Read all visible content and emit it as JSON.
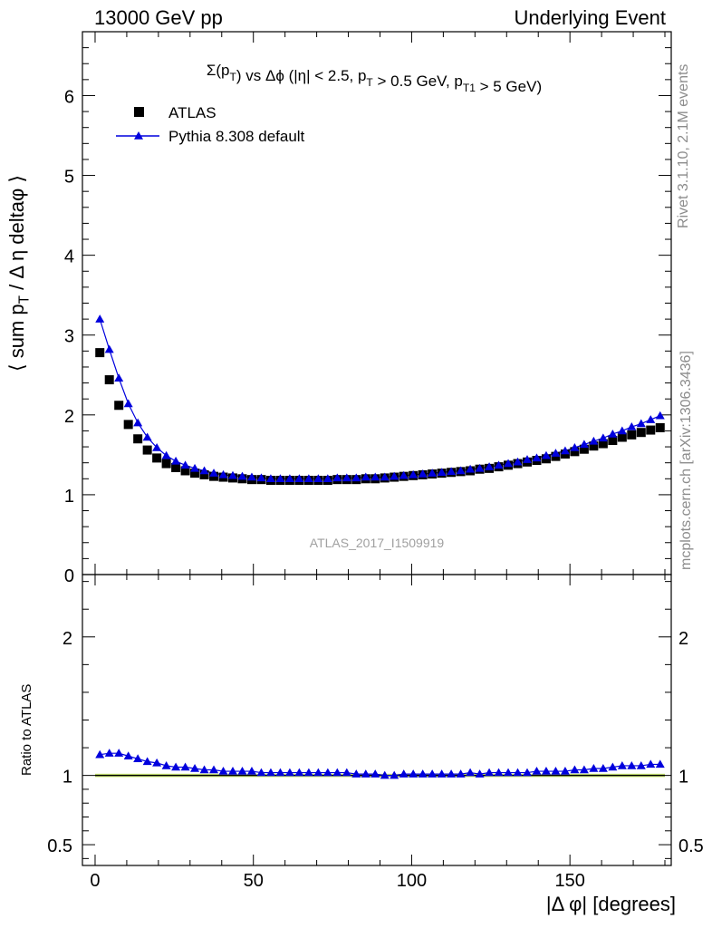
{
  "header": {
    "left": "13000 GeV pp",
    "right": "Underlying Event"
  },
  "side": {
    "rivet": "Rivet 3.1.10,  2.1M events",
    "mcplots": "mcplots.cern.ch [arXiv:1306.3436]"
  },
  "labels": {
    "y_main": "⟨ sum p_T / Δ η deltaφ ⟩",
    "y_ratio": "Ratio to ATLAS",
    "x": "|Δ φ| [degrees]",
    "analysis": "ATLAS_2017_I1509919"
  },
  "title": {
    "main": "Σ(p_T) vs Δϕ (|η| < 2.5, p_T > 0.5 GeV, p_T1 > 5 GeV)"
  },
  "legend": {
    "entries": [
      {
        "label": "ATLAS",
        "marker": "square",
        "color": "#000000"
      },
      {
        "label": "Pythia 8.308 default",
        "marker": "triangle",
        "color": "#0000dd"
      }
    ]
  },
  "colors": {
    "data": "#000000",
    "mc": "#0000dd",
    "band": "#ccee66",
    "reference_line": "#000000"
  },
  "chart_data": [
    {
      "type": "scatter",
      "name": "main",
      "xlim": [
        -4,
        182
      ],
      "ylim": [
        0,
        6.8
      ],
      "x_ticks": [
        0,
        50,
        100,
        150
      ],
      "y_ticks": [
        0,
        1,
        2,
        3,
        4,
        5,
        6
      ],
      "y_tick_labels": [
        "0",
        "1",
        "2",
        "3",
        "4",
        "5",
        "6"
      ],
      "x": [
        1.5,
        4.5,
        7.5,
        10.5,
        13.5,
        16.5,
        19.5,
        22.5,
        25.5,
        28.5,
        31.5,
        34.5,
        37.5,
        40.5,
        43.5,
        46.5,
        49.5,
        52.5,
        55.5,
        58.5,
        61.5,
        64.5,
        67.5,
        70.5,
        73.5,
        76.5,
        79.5,
        82.5,
        85.5,
        88.5,
        91.5,
        94.5,
        97.5,
        100.5,
        103.5,
        106.5,
        109.5,
        112.5,
        115.5,
        118.5,
        121.5,
        124.5,
        127.5,
        130.5,
        133.5,
        136.5,
        139.5,
        142.5,
        145.5,
        148.5,
        151.5,
        154.5,
        157.5,
        160.5,
        163.5,
        166.5,
        169.5,
        172.5,
        175.5,
        178.5
      ],
      "series": [
        {
          "name": "ATLAS",
          "marker": "square",
          "values": [
            2.78,
            2.44,
            2.12,
            1.88,
            1.7,
            1.56,
            1.46,
            1.39,
            1.34,
            1.3,
            1.27,
            1.25,
            1.23,
            1.22,
            1.21,
            1.2,
            1.19,
            1.19,
            1.18,
            1.18,
            1.18,
            1.18,
            1.18,
            1.18,
            1.18,
            1.19,
            1.19,
            1.19,
            1.2,
            1.2,
            1.21,
            1.22,
            1.23,
            1.24,
            1.25,
            1.26,
            1.27,
            1.28,
            1.29,
            1.3,
            1.32,
            1.33,
            1.35,
            1.37,
            1.39,
            1.41,
            1.43,
            1.45,
            1.48,
            1.51,
            1.54,
            1.57,
            1.61,
            1.64,
            1.68,
            1.72,
            1.75,
            1.78,
            1.81,
            1.84
          ]
        },
        {
          "name": "Pythia 8.308 default",
          "marker": "triangle",
          "values": [
            3.2,
            2.82,
            2.46,
            2.14,
            1.9,
            1.72,
            1.59,
            1.49,
            1.42,
            1.37,
            1.33,
            1.3,
            1.27,
            1.25,
            1.24,
            1.23,
            1.22,
            1.21,
            1.2,
            1.2,
            1.2,
            1.2,
            1.2,
            1.2,
            1.2,
            1.21,
            1.21,
            1.21,
            1.22,
            1.22,
            1.22,
            1.23,
            1.24,
            1.25,
            1.26,
            1.27,
            1.28,
            1.29,
            1.3,
            1.32,
            1.33,
            1.35,
            1.37,
            1.39,
            1.41,
            1.44,
            1.46,
            1.49,
            1.52,
            1.55,
            1.59,
            1.63,
            1.67,
            1.71,
            1.76,
            1.8,
            1.85,
            1.89,
            1.94,
            1.99
          ]
        }
      ]
    },
    {
      "type": "scatter",
      "name": "ratio",
      "ylabel": "Ratio to ATLAS",
      "xlabel": "|Δ φ| [degrees]",
      "xlim": [
        -4,
        182
      ],
      "ylim": [
        0.35,
        2.45
      ],
      "x_ticks": [
        0,
        50,
        100,
        150
      ],
      "x_tick_labels": [
        "0",
        "50",
        "100",
        "150"
      ],
      "y_ticks": [
        0.5,
        1,
        2
      ],
      "y_tick_labels": [
        "0.5",
        "1",
        "2"
      ],
      "series": [
        {
          "name": "Pythia 8.308 default",
          "values": [
            1.15,
            1.16,
            1.16,
            1.14,
            1.12,
            1.1,
            1.09,
            1.07,
            1.06,
            1.06,
            1.05,
            1.04,
            1.04,
            1.03,
            1.03,
            1.03,
            1.03,
            1.02,
            1.02,
            1.02,
            1.02,
            1.02,
            1.02,
            1.02,
            1.02,
            1.02,
            1.02,
            1.01,
            1.01,
            1.01,
            1.0,
            1.0,
            1.01,
            1.01,
            1.01,
            1.01,
            1.01,
            1.01,
            1.01,
            1.02,
            1.01,
            1.02,
            1.02,
            1.02,
            1.02,
            1.02,
            1.03,
            1.03,
            1.03,
            1.03,
            1.04,
            1.04,
            1.05,
            1.05,
            1.06,
            1.07,
            1.07,
            1.07,
            1.08,
            1.08
          ]
        }
      ]
    }
  ]
}
